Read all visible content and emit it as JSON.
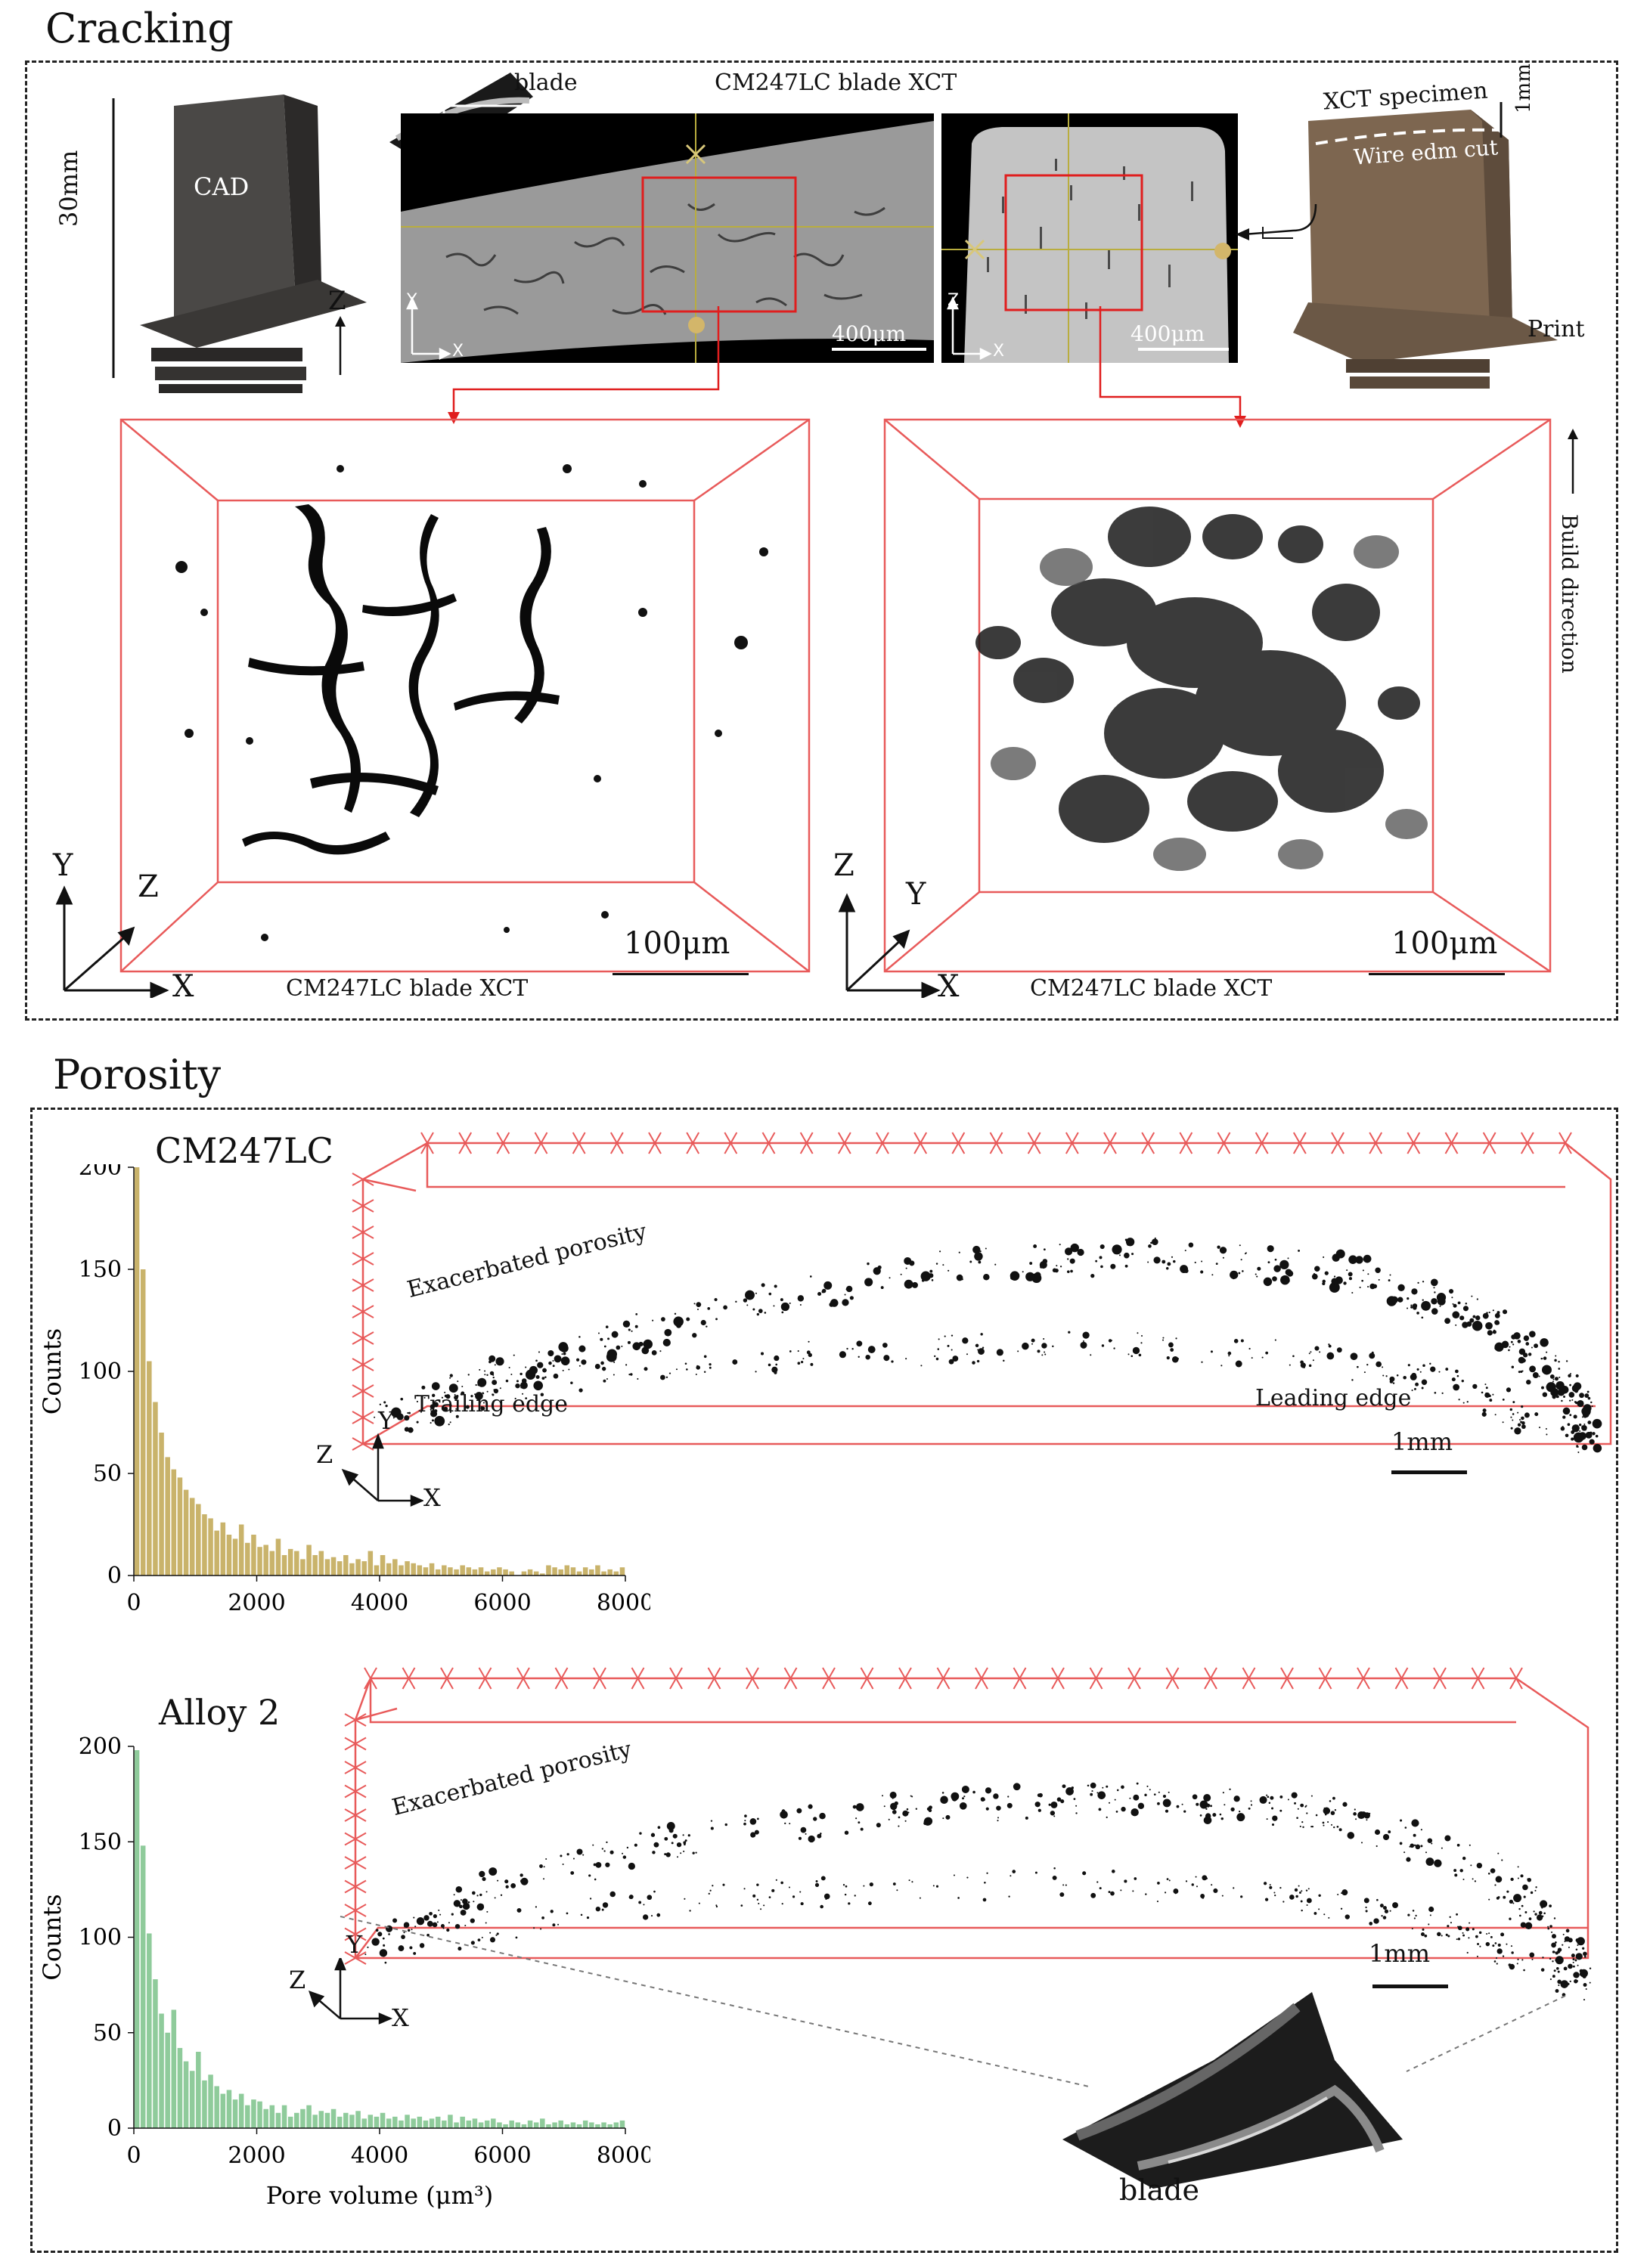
{
  "cracking": {
    "title": "Cracking",
    "scale_30mm": "30mm",
    "cad_label": "CAD",
    "axis_z": "Z",
    "blade_label": "blade",
    "xct_title": "CM247LC blade XCT",
    "inset_axis_y": "Y",
    "inset_axis_x": "X",
    "inset_axis_z": "Z",
    "scale_400_left": "400μm",
    "scale_400_right": "400μm",
    "xct_specimen": "XCT specimen",
    "scale_1mm": "1mm",
    "wire_edm": "Wire edm cut",
    "print_label": "Print",
    "build_direction": "Build direction",
    "left3d": {
      "ax_y": "Y",
      "ax_z": "Z",
      "ax_x": "X",
      "scale": "100μm",
      "caption": "CM247LC blade XCT"
    },
    "right3d": {
      "ax_z": "Z",
      "ax_y": "Y",
      "ax_x": "X",
      "scale": "100μm",
      "caption": "CM247LC blade XCT"
    }
  },
  "porosity": {
    "title": "Porosity",
    "top": {
      "alloy": "CM247LC",
      "exacerbated": "Exacerbated porosity",
      "trailing": "Trailing edge",
      "leading": "Leading edge",
      "scale": "1mm",
      "ax_z": "Z",
      "ax_y": "Y",
      "ax_x": "X"
    },
    "bottom": {
      "alloy": "Alloy 2",
      "exacerbated": "Exacerbated porosity",
      "scale": "1mm",
      "ax_z": "Z",
      "ax_y": "Y",
      "ax_x": "X",
      "blade_label": "blade"
    }
  },
  "chart_data": [
    {
      "type": "bar",
      "series_color": "#c9b36b",
      "ylabel": "Counts",
      "xlabel": "",
      "xlim": [
        0,
        8000
      ],
      "ylim": [
        0,
        200
      ],
      "xticks": [
        "0",
        "2000",
        "4000",
        "6000",
        "8000"
      ],
      "yticks": [
        "0",
        "50",
        "100",
        "150",
        "200"
      ],
      "bin_width": 100,
      "x": [
        50,
        150,
        250,
        350,
        450,
        550,
        650,
        750,
        850,
        950,
        1050,
        1150,
        1250,
        1350,
        1450,
        1550,
        1650,
        1750,
        1850,
        1950,
        2050,
        2150,
        2250,
        2350,
        2450,
        2550,
        2650,
        2750,
        2850,
        2950,
        3050,
        3150,
        3250,
        3350,
        3450,
        3550,
        3650,
        3750,
        3850,
        3950,
        4050,
        4150,
        4250,
        4350,
        4450,
        4550,
        4650,
        4750,
        4850,
        4950,
        5050,
        5150,
        5250,
        5350,
        5450,
        5550,
        5650,
        5750,
        5850,
        5950,
        6050,
        6150,
        6250,
        6350,
        6450,
        6550,
        6650,
        6750,
        6850,
        6950,
        7050,
        7150,
        7250,
        7350,
        7450,
        7550,
        7650,
        7750,
        7850,
        7950
      ],
      "values": [
        200,
        150,
        105,
        85,
        70,
        58,
        52,
        48,
        42,
        38,
        35,
        30,
        28,
        22,
        26,
        20,
        18,
        25,
        16,
        20,
        14,
        15,
        12,
        18,
        10,
        13,
        12,
        8,
        15,
        10,
        12,
        8,
        9,
        7,
        10,
        6,
        8,
        7,
        12,
        5,
        10,
        6,
        8,
        5,
        7,
        6,
        5,
        4,
        6,
        3,
        5,
        4,
        3,
        5,
        4,
        3,
        4,
        2,
        3,
        4,
        3,
        2,
        0,
        2,
        3,
        2,
        1,
        5,
        4,
        3,
        5,
        4,
        2,
        4,
        3,
        5,
        2,
        3,
        2,
        4
      ]
    },
    {
      "type": "bar",
      "series_color": "#8fcb9b",
      "ylabel": "Counts",
      "xlabel": "Pore volume (μm³)",
      "xlim": [
        0,
        8000
      ],
      "ylim": [
        0,
        200
      ],
      "xticks": [
        "0",
        "2000",
        "4000",
        "6000",
        "8000"
      ],
      "yticks": [
        "0",
        "50",
        "100",
        "150",
        "200"
      ],
      "bin_width": 100,
      "x": [
        50,
        150,
        250,
        350,
        450,
        550,
        650,
        750,
        850,
        950,
        1050,
        1150,
        1250,
        1350,
        1450,
        1550,
        1650,
        1750,
        1850,
        1950,
        2050,
        2150,
        2250,
        2350,
        2450,
        2550,
        2650,
        2750,
        2850,
        2950,
        3050,
        3150,
        3250,
        3350,
        3450,
        3550,
        3650,
        3750,
        3850,
        3950,
        4050,
        4150,
        4250,
        4350,
        4450,
        4550,
        4650,
        4750,
        4850,
        4950,
        5050,
        5150,
        5250,
        5350,
        5450,
        5550,
        5650,
        5750,
        5850,
        5950,
        6050,
        6150,
        6250,
        6350,
        6450,
        6550,
        6650,
        6750,
        6850,
        6950,
        7050,
        7150,
        7250,
        7350,
        7450,
        7550,
        7650,
        7750,
        7850,
        7950
      ],
      "values": [
        198,
        148,
        102,
        78,
        60,
        50,
        62,
        42,
        35,
        30,
        40,
        25,
        28,
        22,
        18,
        20,
        15,
        18,
        12,
        15,
        14,
        10,
        12,
        8,
        12,
        6,
        8,
        10,
        12,
        7,
        9,
        8,
        10,
        6,
        8,
        7,
        9,
        5,
        7,
        6,
        8,
        5,
        6,
        4,
        7,
        5,
        6,
        4,
        5,
        6,
        4,
        7,
        3,
        6,
        4,
        5,
        3,
        4,
        5,
        3,
        2,
        4,
        3,
        2,
        4,
        3,
        5,
        2,
        3,
        4,
        2,
        3,
        2,
        4,
        3,
        2,
        3,
        2,
        3,
        4
      ]
    }
  ]
}
